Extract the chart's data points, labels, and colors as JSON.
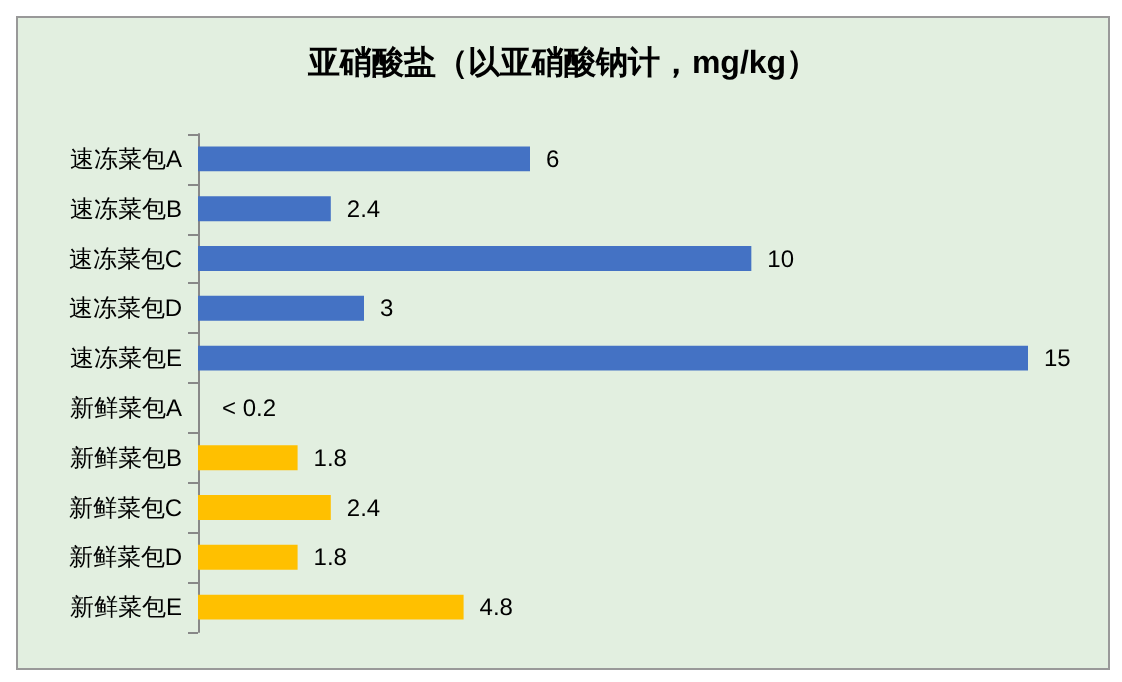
{
  "chart_data": {
    "type": "bar",
    "title": "亚硝酸盐（以亚硝酸钠计，mg/kg）",
    "orientation": "horizontal",
    "categories": [
      "速冻菜包A",
      "速冻菜包B",
      "速冻菜包C",
      "速冻菜包D",
      "速冻菜包E",
      "新鲜菜包A",
      "新鲜菜包B",
      "新鲜菜包C",
      "新鲜菜包D",
      "新鲜菜包E"
    ],
    "values": [
      6,
      2.4,
      10,
      3,
      15,
      null,
      1.8,
      2.4,
      1.8,
      4.8
    ],
    "value_labels": [
      "6",
      "2.4",
      "10",
      "3",
      "15",
      "< 0.2",
      "1.8",
      "2.4",
      "1.8",
      "4.8"
    ],
    "colors": [
      "#4472c4",
      "#4472c4",
      "#4472c4",
      "#4472c4",
      "#4472c4",
      "#ffc000",
      "#ffc000",
      "#ffc000",
      "#ffc000",
      "#ffc000"
    ]
  }
}
